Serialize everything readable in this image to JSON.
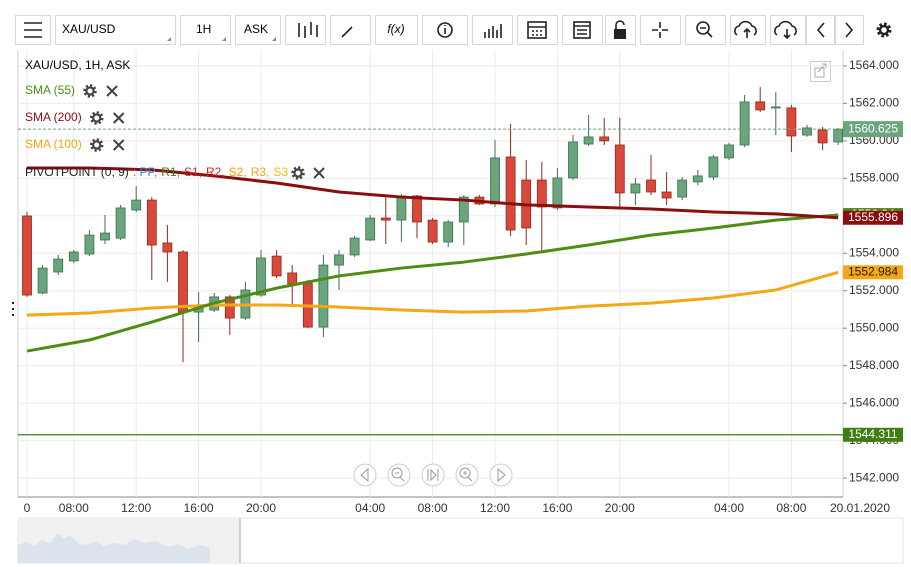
{
  "toolbar": {
    "symbol": "XAU/USD",
    "timeframe": "1H",
    "side": "ASK",
    "fx": "f(x)"
  },
  "chart_data": {
    "type": "candlestick",
    "title": "XAU/USD, 1H, ASK",
    "categories": [
      "0",
      null,
      null,
      "08:00",
      null,
      null,
      null,
      "12:00",
      null,
      null,
      null,
      "16:00",
      null,
      null,
      null,
      "20:00",
      null,
      null,
      null,
      null,
      null,
      null,
      "04:00",
      null,
      null,
      null,
      "08:00",
      null,
      null,
      null,
      "12:00",
      null,
      null,
      null,
      "16:00",
      null,
      null,
      null,
      "20:00",
      null,
      null,
      null,
      null,
      null,
      null,
      "04:00",
      null,
      null,
      null,
      "08:00",
      null,
      null,
      null
    ],
    "date_label": "20.01.2020",
    "open": [
      1555.99,
      1551.88,
      1553.0,
      1553.59,
      1553.96,
      1554.71,
      1554.81,
      1556.31,
      1556.84,
      1554.55,
      1554.07,
      1550.86,
      1550.97,
      1551.67,
      1550.54,
      1551.77,
      1553.85,
      1552.95,
      1552.41,
      1550.06,
      1553.37,
      1553.91,
      1554.71,
      1555.88,
      1555.77,
      1557.06,
      1555.77,
      1554.6,
      1555.67,
      1557.0,
      1556.63,
      1559.14,
      1557.91,
      1557.91,
      1556.42,
      1558.02,
      1559.83,
      1560.21,
      1559.78,
      1557.22,
      1557.91,
      1557.27,
      1557.0,
      1557.81,
      1558.07,
      1559.09,
      1559.78,
      1562.08,
      1561.76,
      1561.76,
      1560.31,
      1560.58,
      1559.94
    ],
    "high": [
      1556.2,
      1553.37,
      1553.91,
      1554.17,
      1555.24,
      1556.04,
      1556.58,
      1557.59,
      1557.0,
      1555.51,
      1554.17,
      1551.93,
      1551.88,
      1551.77,
      1552.47,
      1554.17,
      1554.17,
      1553.37,
      1552.57,
      1553.91,
      1554.17,
      1554.92,
      1556.04,
      1557.0,
      1557.16,
      1557.11,
      1555.88,
      1555.77,
      1557.11,
      1557.11,
      1560.05,
      1560.9,
      1558.98,
      1558.87,
      1558.55,
      1560.31,
      1561.38,
      1561.22,
      1561.22,
      1558.02,
      1559.25,
      1558.34,
      1558.07,
      1558.45,
      1559.25,
      1559.89,
      1562.45,
      1562.88,
      1562.61,
      1561.92,
      1560.85,
      1560.74,
      1560.69
    ],
    "low": [
      1551.67,
      1551.82,
      1552.84,
      1553.48,
      1553.85,
      1554.49,
      1554.71,
      1556.2,
      1552.57,
      1552.47,
      1548.19,
      1549.26,
      1550.86,
      1549.64,
      1550.44,
      1551.67,
      1552.68,
      1551.24,
      1550.01,
      1549.53,
      1552.04,
      1553.8,
      1554.65,
      1554.49,
      1554.6,
      1554.81,
      1554.49,
      1554.33,
      1554.44,
      1556.58,
      1556.47,
      1554.92,
      1554.44,
      1554.17,
      1556.31,
      1557.91,
      1559.73,
      1559.78,
      1556.47,
      1556.58,
      1557.11,
      1556.58,
      1556.84,
      1557.64,
      1557.91,
      1558.98,
      1559.67,
      1561.54,
      1560.31,
      1559.41,
      1560.21,
      1559.51,
      1559.78
    ],
    "close": [
      1551.77,
      1553.21,
      1553.69,
      1554.07,
      1554.97,
      1555.08,
      1556.42,
      1556.84,
      1554.44,
      1554.07,
      1550.86,
      1551.08,
      1551.67,
      1550.54,
      1552.04,
      1553.75,
      1552.79,
      1552.36,
      1550.06,
      1553.37,
      1553.91,
      1554.81,
      1555.88,
      1555.77,
      1557.06,
      1555.67,
      1554.6,
      1555.67,
      1557.0,
      1556.63,
      1559.09,
      1555.24,
      1555.35,
      1556.47,
      1558.02,
      1559.94,
      1560.21,
      1560.0,
      1557.22,
      1557.7,
      1557.27,
      1556.95,
      1557.91,
      1558.13,
      1559.14,
      1559.78,
      1562.08,
      1561.65,
      1561.81,
      1560.26,
      1560.69,
      1559.89,
      1560.625
    ],
    "up_color": "#6aa57d",
    "down_color": "#d9493a",
    "last_price_color": "#6aa57d",
    "overlays": [
      {
        "name": "SMA (100)",
        "color": "#f5a716",
        "x": [
          0,
          4,
          8,
          12,
          16,
          20,
          24,
          28,
          32,
          36,
          40,
          44,
          48,
          52
        ],
        "values": [
          1550.7,
          1550.81,
          1551.08,
          1551.24,
          1551.24,
          1551.13,
          1550.97,
          1550.86,
          1550.92,
          1551.18,
          1551.34,
          1551.61,
          1552.04,
          1552.984
        ]
      },
      {
        "name": "SMA (55)",
        "color": "#4e8c12",
        "x": [
          0,
          4,
          8,
          12,
          16,
          20,
          24,
          28,
          32,
          36,
          40,
          44,
          48,
          52
        ],
        "values": [
          1548.78,
          1549.37,
          1550.33,
          1551.34,
          1552.14,
          1552.79,
          1553.21,
          1553.53,
          1553.96,
          1554.44,
          1554.97,
          1555.35,
          1555.77,
          1556.04
        ]
      },
      {
        "name": "SMA (200)",
        "color": "#8b0e0e",
        "x": [
          0,
          4,
          8,
          12,
          16,
          20,
          24,
          28,
          32,
          36,
          40,
          44,
          48,
          52
        ],
        "values": [
          1558.55,
          1558.55,
          1558.45,
          1558.13,
          1557.75,
          1557.27,
          1557.0,
          1556.84,
          1556.58,
          1556.47,
          1556.36,
          1556.2,
          1556.1,
          1555.896
        ]
      }
    ],
    "legend_order": [
      1,
      2,
      0
    ],
    "pivot": {
      "name": "PIVOTPOINT (0, 9)",
      "value": 1544.311,
      "color": "#3f7d10",
      "levels": [
        {
          "name": ": PP,",
          "color": "#3a86d4"
        },
        {
          "name": "R1,",
          "color": "#3f7d10"
        },
        {
          "name": "S1,",
          "color": "#c62828"
        },
        {
          "name": "R2,",
          "color": "#c62828"
        },
        {
          "name": "S2,",
          "color": "#f59a0c"
        },
        {
          "name": "R3,",
          "color": "#f5a716"
        },
        {
          "name": "S3",
          "color": "#e8c300"
        }
      ]
    },
    "ylim": [
      1540.99,
      1564.85
    ],
    "yticks": [
      {
        "value": 1542,
        "label": "1542.000"
      },
      {
        "value": 1544,
        "label": "1544.000"
      },
      {
        "value": 1546,
        "label": "1546.000"
      },
      {
        "value": 1548,
        "label": "1548.000"
      },
      {
        "value": 1550,
        "label": "1550.000"
      },
      {
        "value": 1552,
        "label": "1552.000"
      },
      {
        "value": 1554,
        "label": "1554.000"
      },
      {
        "value": 1556,
        "label": "1556.000"
      },
      {
        "value": 1558,
        "label": "1558.000"
      },
      {
        "value": 1560,
        "label": "1560.000"
      },
      {
        "value": 1562,
        "label": "1562.000"
      },
      {
        "value": 1564,
        "label": "1564.000"
      }
    ],
    "grid": true
  }
}
